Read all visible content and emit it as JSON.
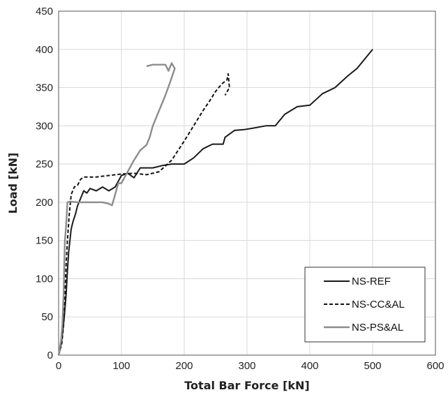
{
  "chart_data": {
    "type": "line",
    "xlabel": "Total Bar Force [kN]",
    "ylabel": "Load [kN]",
    "xlim": [
      0,
      600
    ],
    "ylim": [
      0,
      450
    ],
    "xticks": [
      0,
      100,
      200,
      300,
      400,
      500,
      600
    ],
    "yticks": [
      0,
      50,
      100,
      150,
      200,
      250,
      300,
      350,
      400,
      450
    ],
    "grid": true,
    "legend_position": "bottom-right",
    "series": [
      {
        "name": "NS-REF",
        "style": "solid",
        "color": "#1a1a1a",
        "points": [
          [
            0,
            0
          ],
          [
            3,
            10
          ],
          [
            5,
            20
          ],
          [
            7,
            35
          ],
          [
            9,
            50
          ],
          [
            12,
            80
          ],
          [
            14,
            110
          ],
          [
            16,
            135
          ],
          [
            18,
            150
          ],
          [
            20,
            165
          ],
          [
            23,
            175
          ],
          [
            27,
            185
          ],
          [
            30,
            195
          ],
          [
            35,
            205
          ],
          [
            40,
            215
          ],
          [
            45,
            212
          ],
          [
            50,
            218
          ],
          [
            60,
            215
          ],
          [
            70,
            220
          ],
          [
            80,
            215
          ],
          [
            90,
            220
          ],
          [
            100,
            235
          ],
          [
            110,
            238
          ],
          [
            120,
            232
          ],
          [
            130,
            245
          ],
          [
            150,
            245
          ],
          [
            165,
            248
          ],
          [
            180,
            250
          ],
          [
            200,
            250
          ],
          [
            215,
            258
          ],
          [
            230,
            270
          ],
          [
            245,
            276
          ],
          [
            262,
            276
          ],
          [
            265,
            285
          ],
          [
            280,
            294
          ],
          [
            295,
            295
          ],
          [
            310,
            297
          ],
          [
            330,
            300
          ],
          [
            345,
            300
          ],
          [
            360,
            315
          ],
          [
            380,
            325
          ],
          [
            400,
            327
          ],
          [
            420,
            342
          ],
          [
            440,
            350
          ],
          [
            460,
            365
          ],
          [
            475,
            375
          ],
          [
            485,
            385
          ],
          [
            495,
            395
          ],
          [
            500,
            400
          ]
        ]
      },
      {
        "name": "NS-CC&AL",
        "style": "dashed",
        "color": "#111111",
        "points": [
          [
            0,
            0
          ],
          [
            5,
            15
          ],
          [
            8,
            40
          ],
          [
            10,
            80
          ],
          [
            12,
            120
          ],
          [
            14,
            150
          ],
          [
            17,
            185
          ],
          [
            20,
            210
          ],
          [
            25,
            220
          ],
          [
            30,
            222
          ],
          [
            35,
            230
          ],
          [
            40,
            233
          ],
          [
            60,
            233
          ],
          [
            80,
            235
          ],
          [
            100,
            237
          ],
          [
            120,
            238
          ],
          [
            140,
            236
          ],
          [
            160,
            240
          ],
          [
            180,
            255
          ],
          [
            200,
            280
          ],
          [
            215,
            300
          ],
          [
            230,
            320
          ],
          [
            240,
            332
          ],
          [
            250,
            345
          ],
          [
            260,
            355
          ],
          [
            268,
            360
          ],
          [
            270,
            368
          ],
          [
            272,
            350
          ],
          [
            265,
            340
          ]
        ]
      },
      {
        "name": "NS-PS&AL",
        "style": "solid",
        "color": "#8c8c8c",
        "points": [
          [
            0,
            0
          ],
          [
            4,
            20
          ],
          [
            6,
            40
          ],
          [
            8,
            80
          ],
          [
            9,
            120
          ],
          [
            10,
            150
          ],
          [
            12,
            170
          ],
          [
            14,
            200
          ],
          [
            18,
            201
          ],
          [
            30,
            200
          ],
          [
            50,
            200
          ],
          [
            70,
            200
          ],
          [
            80,
            198
          ],
          [
            85,
            196
          ],
          [
            90,
            210
          ],
          [
            95,
            225
          ],
          [
            100,
            225
          ],
          [
            110,
            240
          ],
          [
            120,
            255
          ],
          [
            130,
            268
          ],
          [
            140,
            275
          ],
          [
            145,
            285
          ],
          [
            150,
            300
          ],
          [
            160,
            320
          ],
          [
            170,
            340
          ],
          [
            178,
            358
          ],
          [
            182,
            368
          ],
          [
            185,
            375
          ],
          [
            180,
            382
          ],
          [
            175,
            372
          ],
          [
            170,
            380
          ],
          [
            160,
            380
          ],
          [
            150,
            380
          ],
          [
            140,
            378
          ]
        ]
      }
    ]
  }
}
